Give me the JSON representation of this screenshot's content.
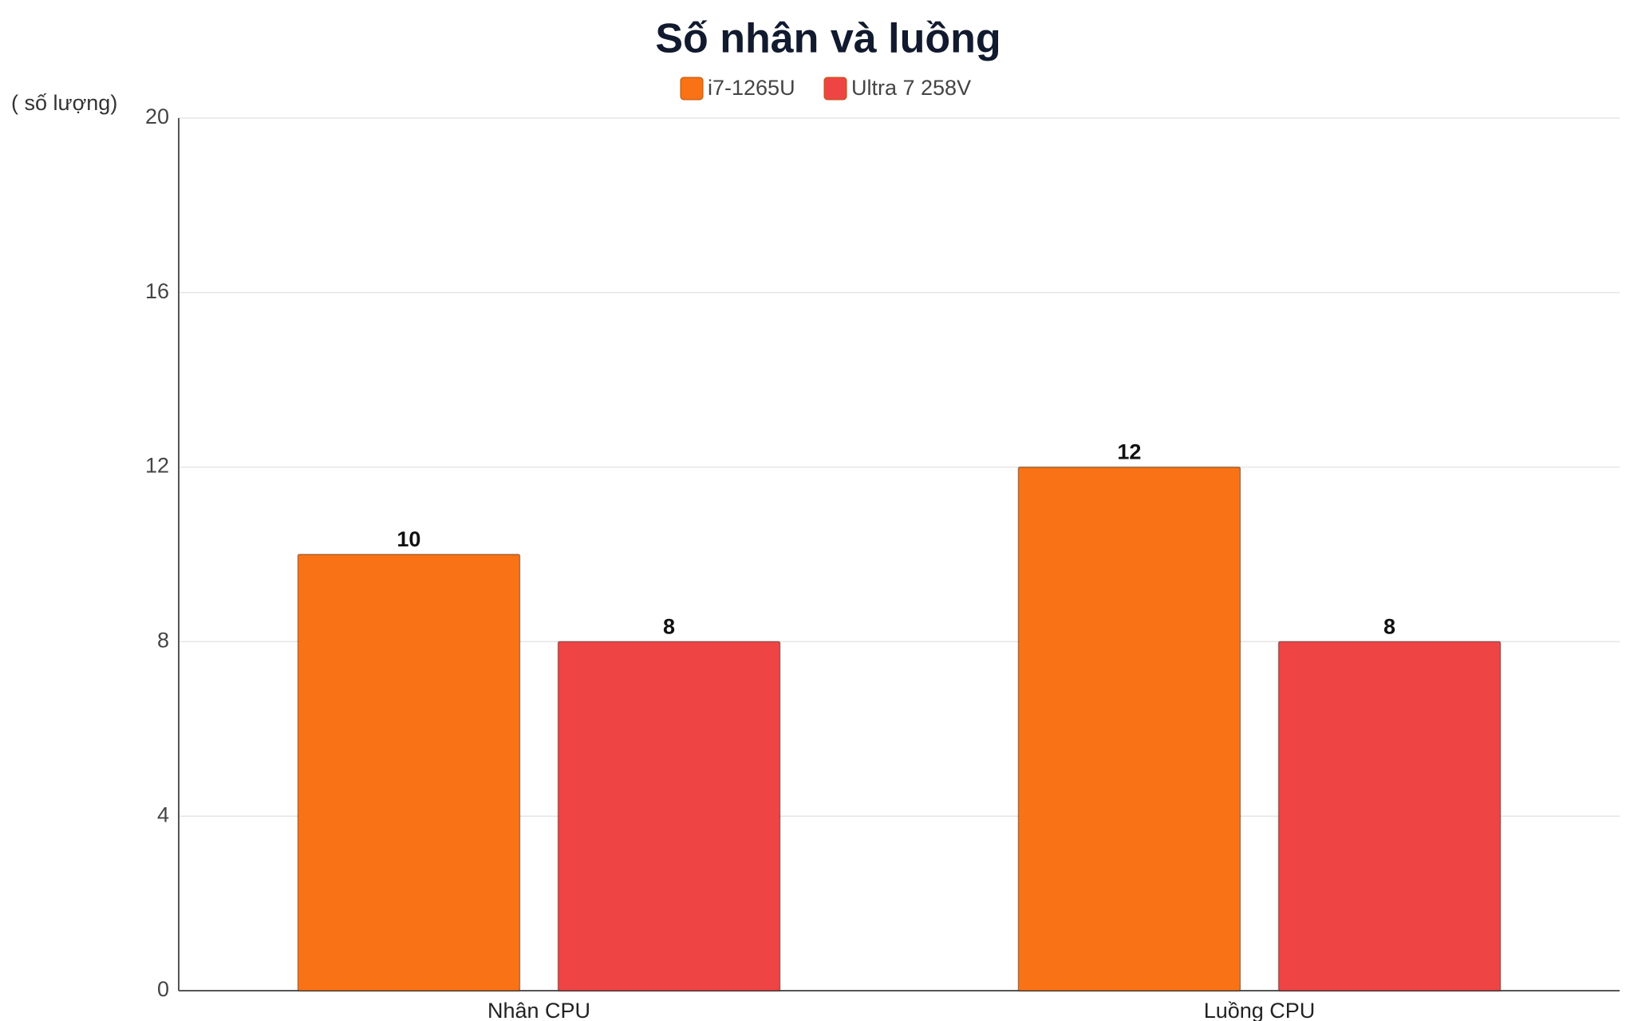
{
  "chart_data": {
    "type": "bar",
    "title": "Số nhân và luồng",
    "y_label": "( số lượng)",
    "categories": [
      "Nhân CPU",
      "Luồng CPU"
    ],
    "series": [
      {
        "name": "i7-1265U",
        "color": "#f97316",
        "values": [
          10,
          12
        ]
      },
      {
        "name": "Ultra 7 258V",
        "color": "#ef4444",
        "values": [
          8,
          8
        ]
      }
    ],
    "ylim": [
      0,
      20
    ],
    "yticks": [
      0,
      4,
      8,
      12,
      16,
      20
    ],
    "grid": true,
    "legend": "top"
  }
}
